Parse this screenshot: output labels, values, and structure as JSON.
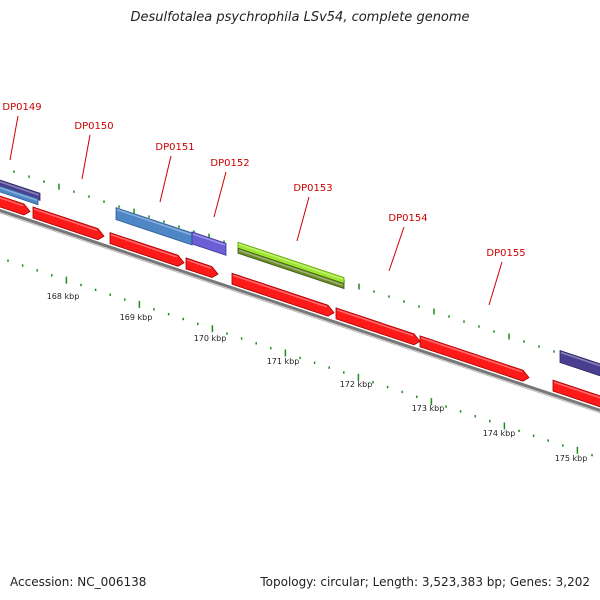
{
  "title": "Desulfotalea psychrophila LSv54, complete genome",
  "footer": {
    "accession": "Accession: NC_006138",
    "summary": "Topology: circular; Length: 3,523,383 bp; Genes: 3,202"
  },
  "colors": {
    "forward_gene": "#ff1a1a",
    "tick": "#1e8a1e",
    "label": "#cc0000",
    "backbone": "#777777",
    "cds_blue": "#4f86c6",
    "cds_purple": "#6b5fd6",
    "cds_darkpurple": "#4a3f8f",
    "cds_green": "#9ee62e",
    "cds_olive": "#6b8a2a"
  },
  "gene_labels": [
    "DP0149",
    "DP0150",
    "DP0151",
    "DP0152",
    "DP0153",
    "DP0154",
    "DP0155"
  ],
  "kbp_labels": [
    "168 kbp",
    "169 kbp",
    "170 kbp",
    "171 kbp",
    "172 kbp",
    "173 kbp",
    "174 kbp",
    "175 kbp"
  ]
}
